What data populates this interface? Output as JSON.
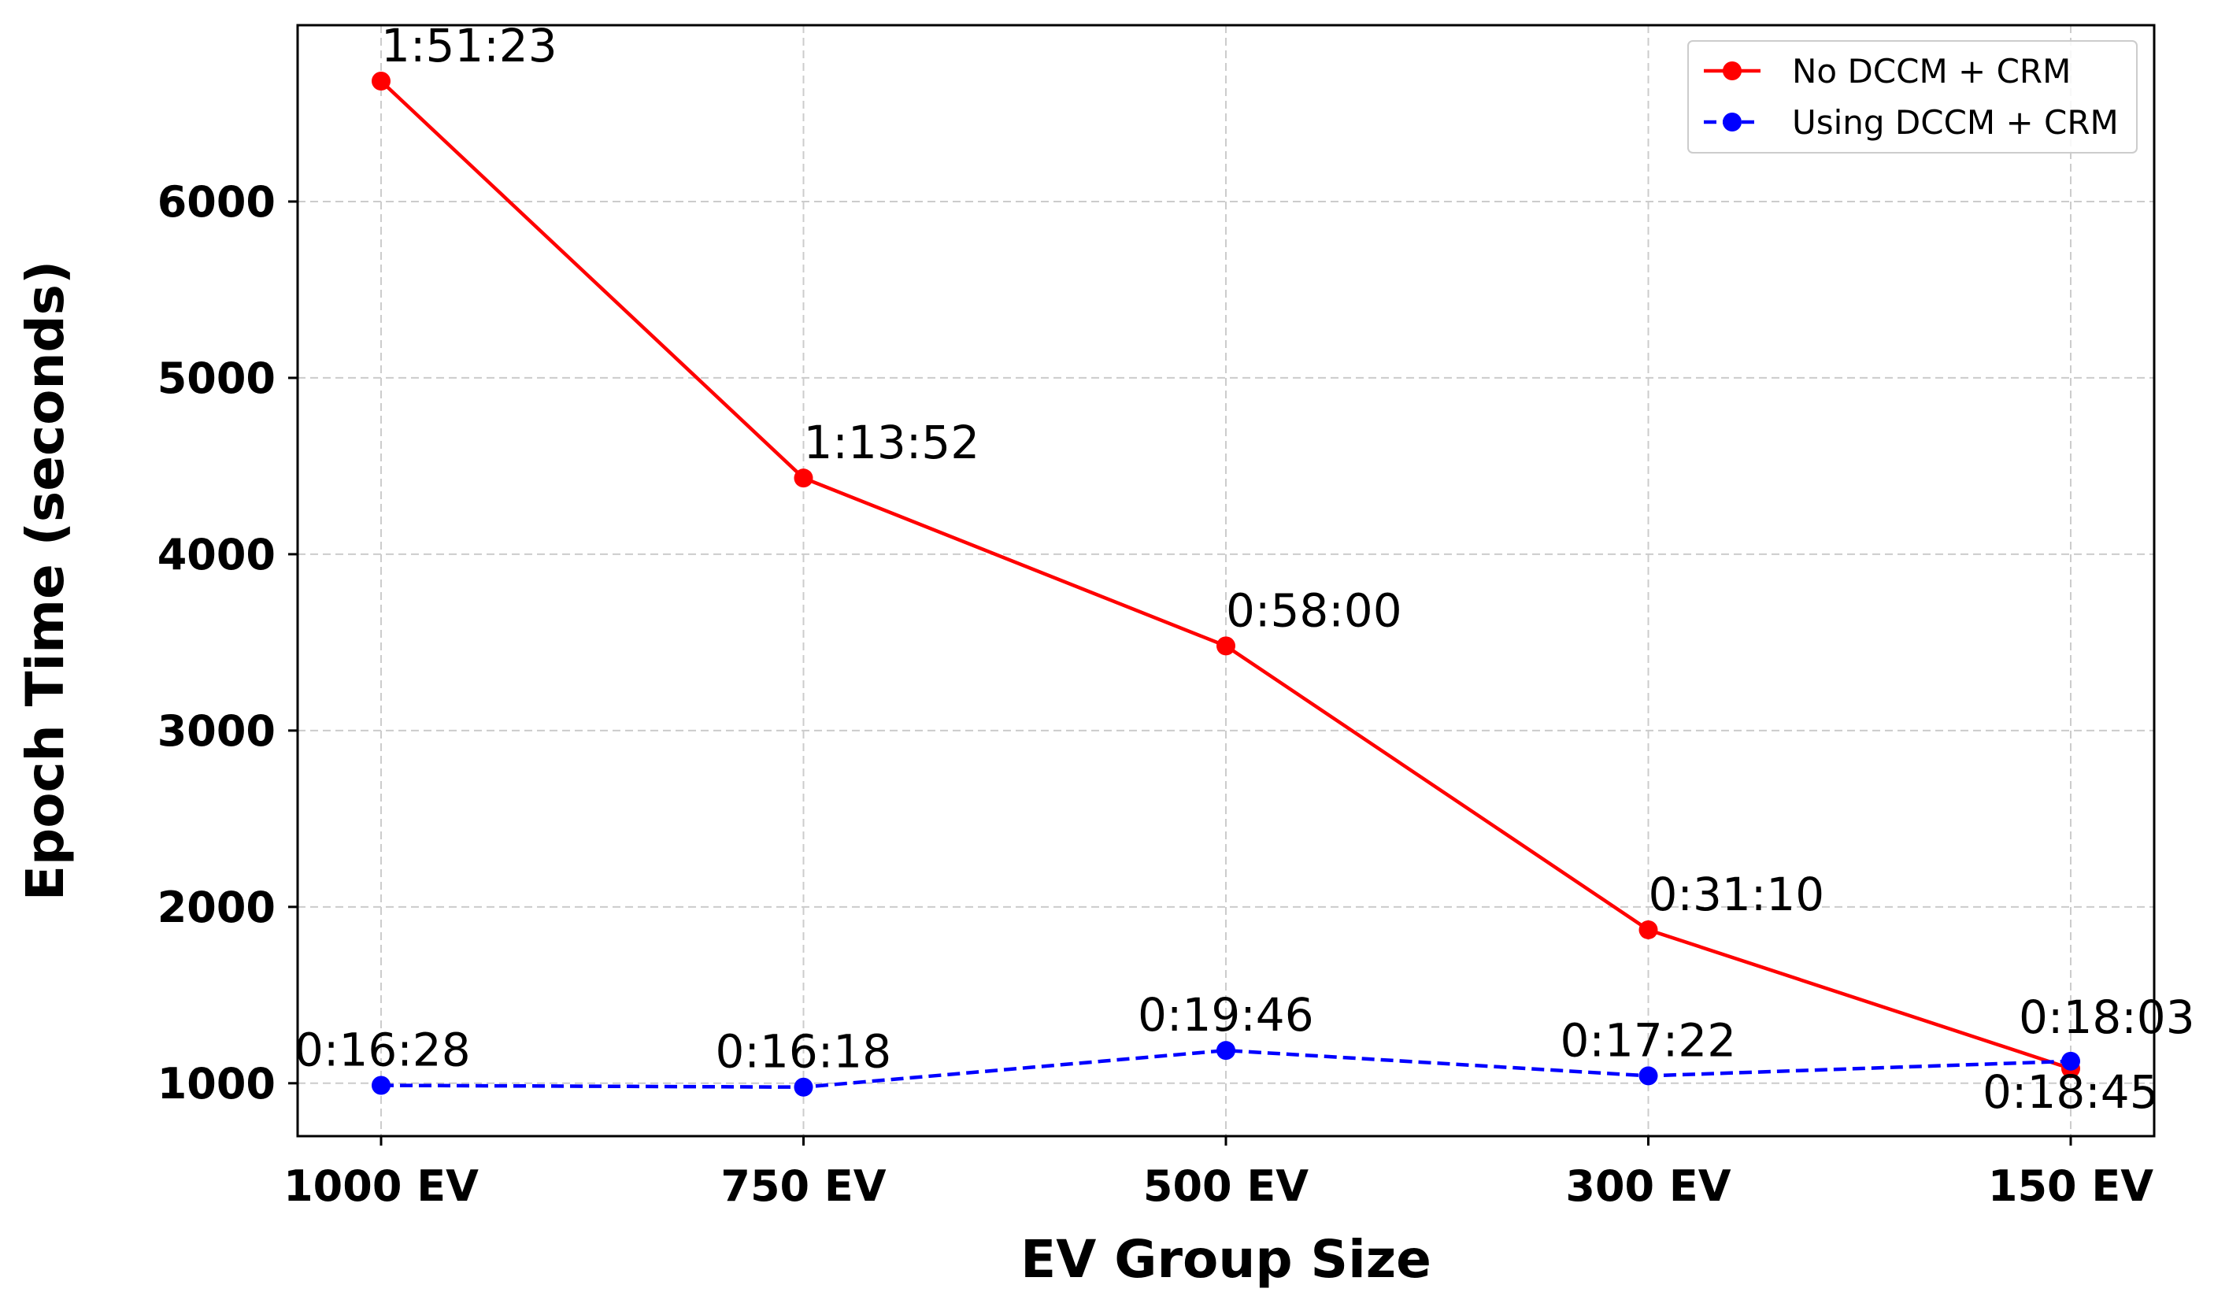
{
  "chart_data": {
    "type": "line",
    "title": "",
    "xlabel": "EV Group Size",
    "ylabel": "Epoch Time (seconds)",
    "categories": [
      "1000 EV",
      "750 EV",
      "500 EV",
      "300 EV",
      "150 EV"
    ],
    "ylim": [
      700,
      7000
    ],
    "yticks": [
      1000,
      2000,
      3000,
      4000,
      5000,
      6000
    ],
    "grid": true,
    "legend_position": "top-right",
    "series": [
      {
        "name": "No DCCM + CRM",
        "color": "#ff0000",
        "style": "solid",
        "marker": "circle",
        "values": [
          6683,
          4432,
          3480,
          1870,
          1083
        ],
        "labels": [
          "1:51:23",
          "1:13:52",
          "0:58:00",
          "0:31:10",
          "0:18:03"
        ]
      },
      {
        "name": "Using DCCM + CRM",
        "color": "#0000ff",
        "style": "dashed",
        "marker": "circle",
        "values": [
          988,
          978,
          1186,
          1042,
          1125
        ],
        "labels": [
          "0:16:28",
          "0:16:18",
          "0:19:46",
          "0:17:22",
          "0:18:45"
        ]
      }
    ]
  }
}
